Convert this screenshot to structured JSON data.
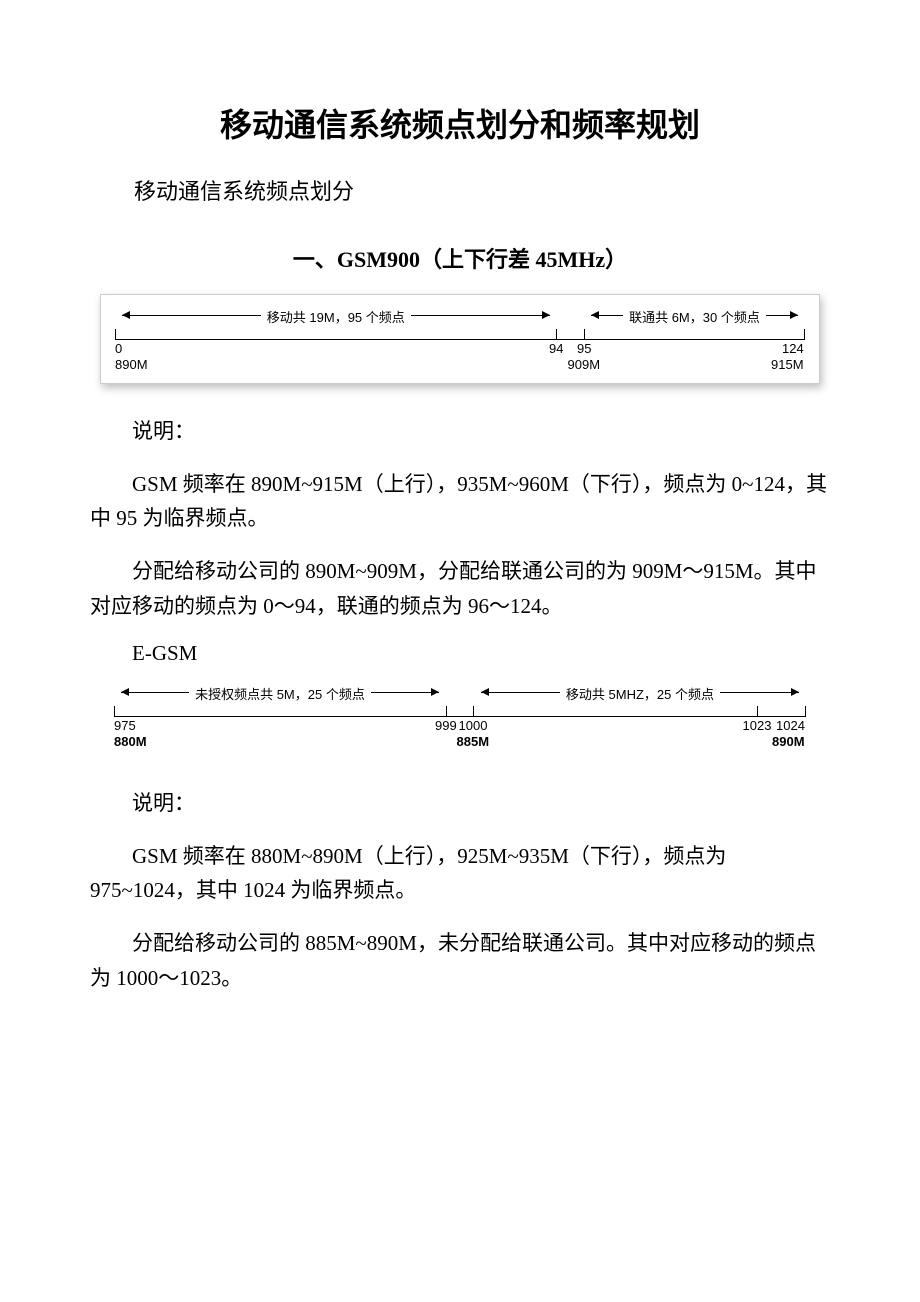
{
  "title": "移动通信系统频点划分和频率规划",
  "subtitle": "移动通信系统频点划分",
  "section1": {
    "heading_prefix": "一、",
    "heading_main": "GSM900",
    "heading_suffix_cn_open": "（上下行差 ",
    "heading_suffix_val": "45MHz",
    "heading_suffix_cn_close": "）"
  },
  "diagram1": {
    "left_arrow_label": "移动共 19M，95 个频点",
    "right_arrow_label": "联通共 6M，30 个频点",
    "axis_colors": {
      "line": "#000000",
      "text": "#000000"
    },
    "ticks": [
      {
        "pos_pct": 0,
        "top_label": "0",
        "bot_label": "890M"
      },
      {
        "pos_pct": 64,
        "top_label": "94",
        "bot_label": ""
      },
      {
        "pos_pct": 68,
        "top_label": "95",
        "bot_label": "909M"
      },
      {
        "pos_pct": 100,
        "top_label": "124",
        "bot_label": "915M"
      }
    ],
    "arrow_ranges": {
      "left": {
        "start_pct": 1,
        "end_pct": 63
      },
      "right": {
        "start_pct": 69,
        "end_pct": 99
      }
    }
  },
  "para1_label": "说明：",
  "para2": "GSM 频率在 890M~915M（上行），935M~960M（下行），频点为 0~124，其中 95 为临界频点。",
  "para3": "分配给移动公司的 890M~909M，分配给联通公司的为 909M～915M。其中对应移动的频点为 0～94，联通的频点为 96～124。",
  "egsm_label": "E-GSM",
  "diagram2": {
    "left_arrow_label": "未授权频点共 5M，25 个频点",
    "right_arrow_label": "移动共 5MHZ，25 个频点",
    "ticks": [
      {
        "pos_pct": 0,
        "top_label": "975",
        "bot_label": "880M",
        "bold_bot": true
      },
      {
        "pos_pct": 48,
        "top_label": "999",
        "bot_label": ""
      },
      {
        "pos_pct": 52,
        "top_label": "1000",
        "bot_label": "885M",
        "bold_bot": true
      },
      {
        "pos_pct": 93,
        "top_label": "1023",
        "bot_label": ""
      },
      {
        "pos_pct": 100,
        "top_label": "1024",
        "bot_label": "890M",
        "bold_bot": true
      }
    ],
    "arrow_ranges": {
      "left": {
        "start_pct": 1,
        "end_pct": 47
      },
      "right": {
        "start_pct": 53,
        "end_pct": 99
      }
    }
  },
  "para4_label": "说明：",
  "para5": "GSM 频率在 880M~890M（上行），925M~935M（下行），频点为 975~1024，其中 1024 为临界频点。",
  "para6": "分配给移动公司的 885M~890M，未分配给联通公司。其中对应移动的频点为 1000～1023。"
}
